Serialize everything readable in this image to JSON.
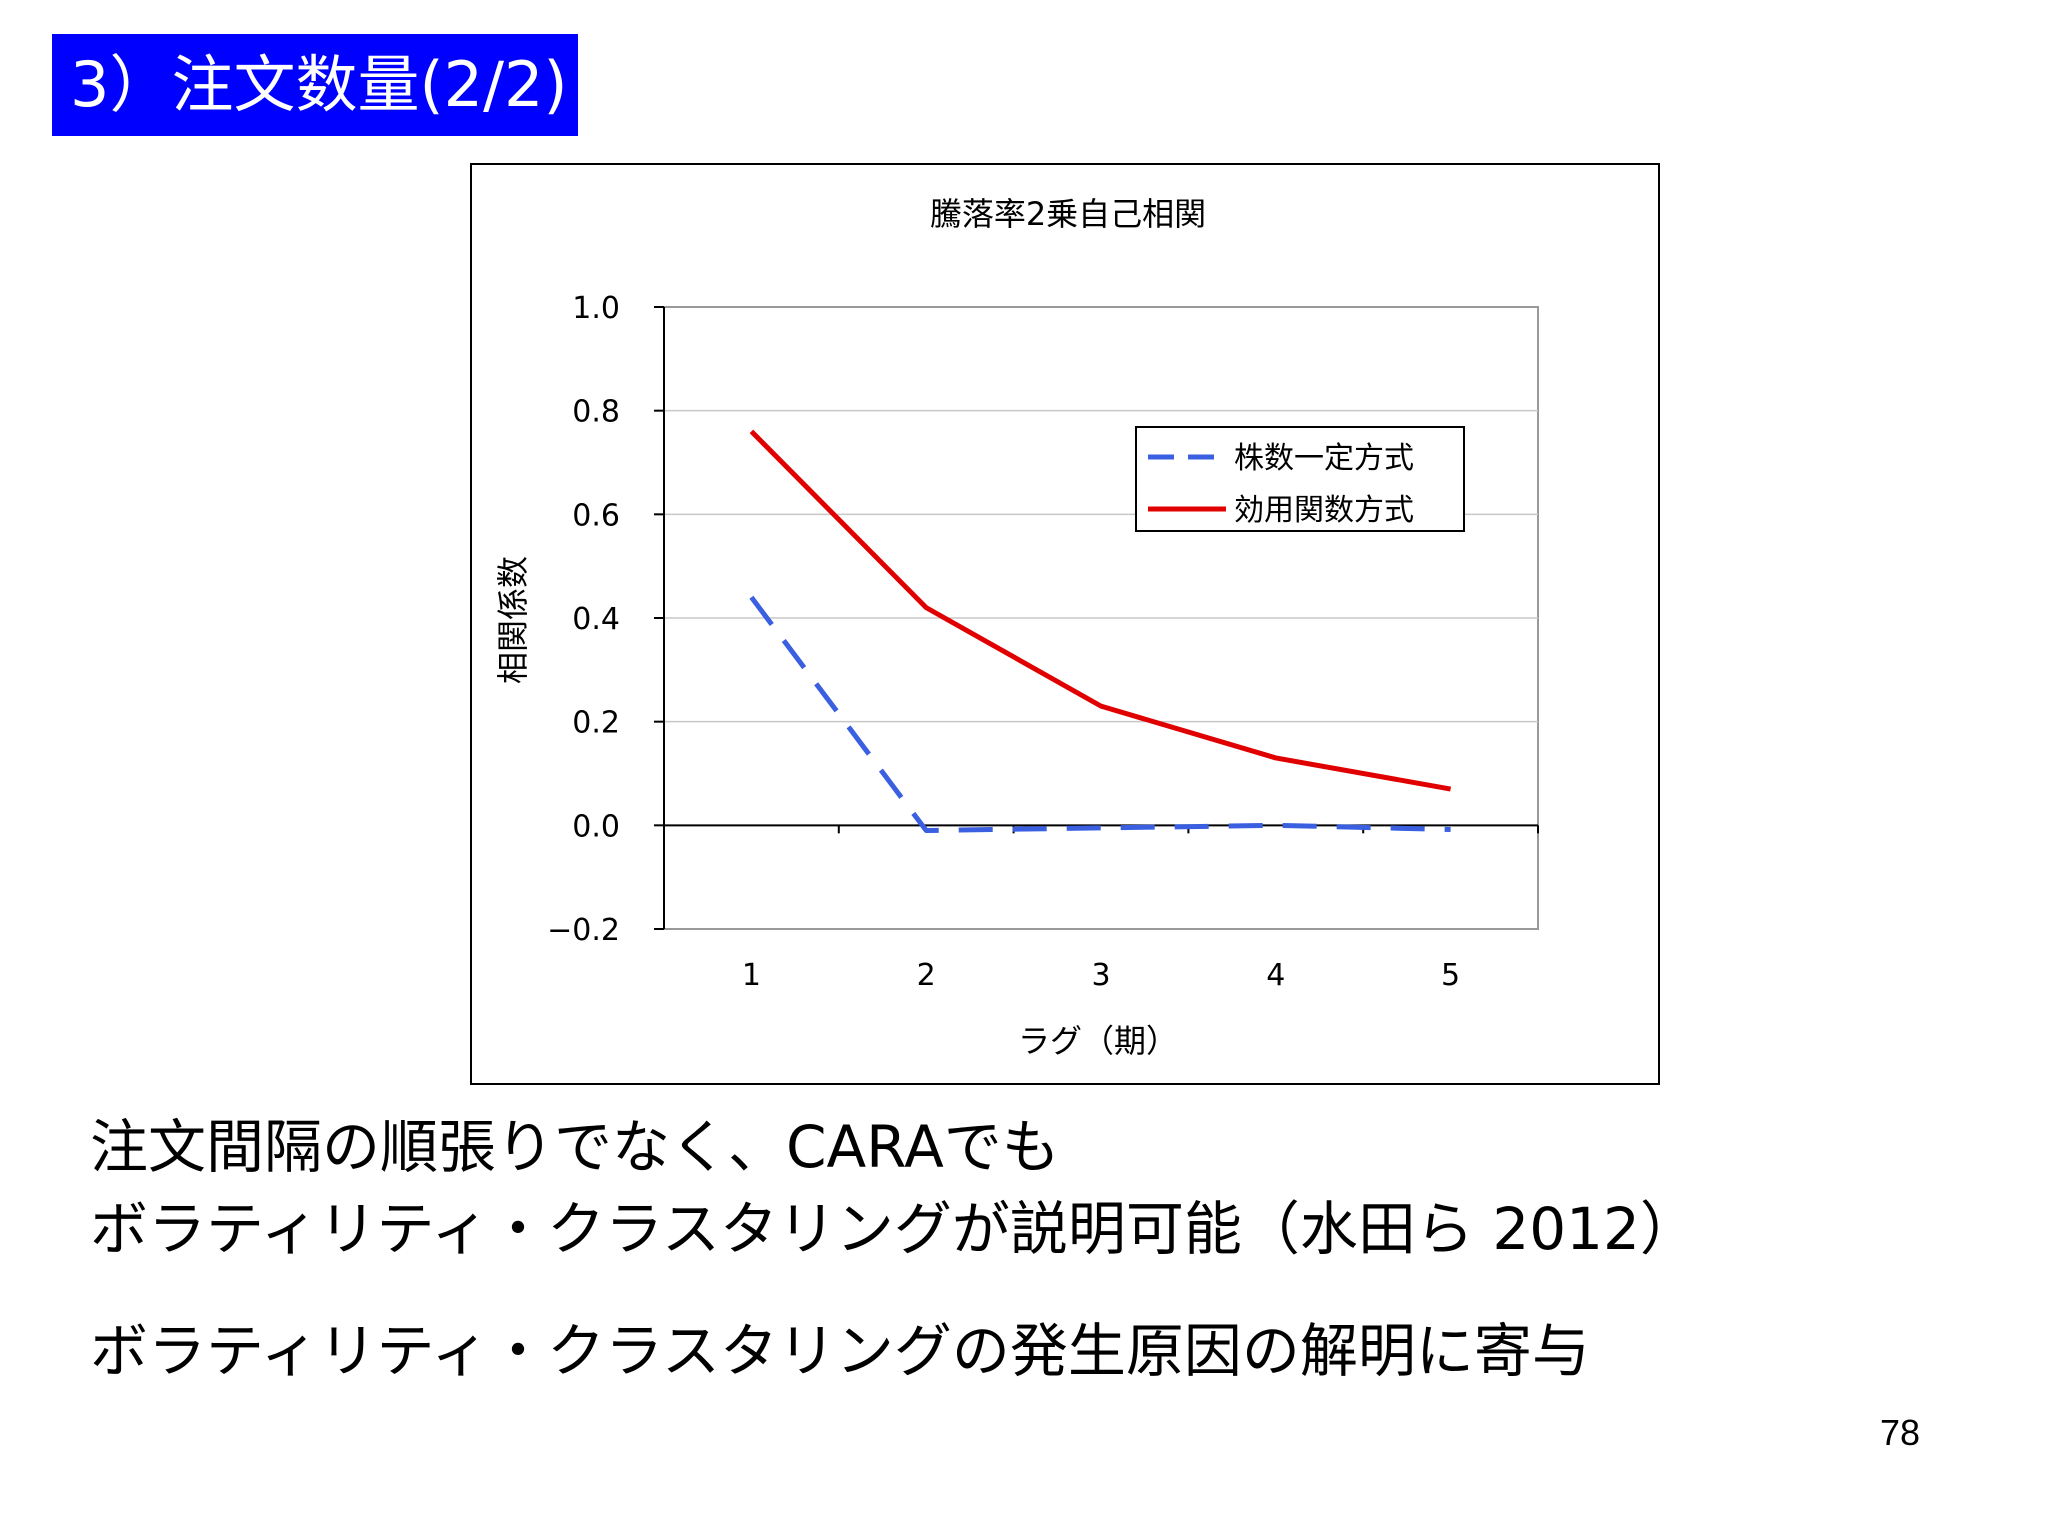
{
  "slide": {
    "title": "3）注文数量(2/2)",
    "body_lines": [
      "注文間隔の順張りでなく、CARAでも",
      "ボラティリティ・クラスタリングが説明可能（水田ら 2012）",
      "ボラティリティ・クラスタリングの発生原因の解明に寄与"
    ],
    "page_number": "78"
  },
  "chart_data": {
    "type": "line",
    "title": "騰落率2乗自己相関",
    "xlabel": "ラグ（期）",
    "ylabel": "相関係数",
    "categories": [
      "1",
      "2",
      "3",
      "4",
      "5"
    ],
    "ylim": [
      -0.2,
      1.0
    ],
    "yticks": [
      "1.0",
      "0.8",
      "0.6",
      "0.4",
      "0.2",
      "0.0",
      "−0.2"
    ],
    "grid": true,
    "legend_position": "top-right",
    "series": [
      {
        "name": "株数一定方式",
        "values": [
          0.44,
          -0.01,
          -0.005,
          0.0,
          -0.008
        ],
        "color": "#3a5fe0",
        "style": "dashed"
      },
      {
        "name": "効用関数方式",
        "values": [
          0.76,
          0.42,
          0.23,
          0.13,
          0.07
        ],
        "color": "#e00000",
        "style": "solid"
      }
    ]
  }
}
